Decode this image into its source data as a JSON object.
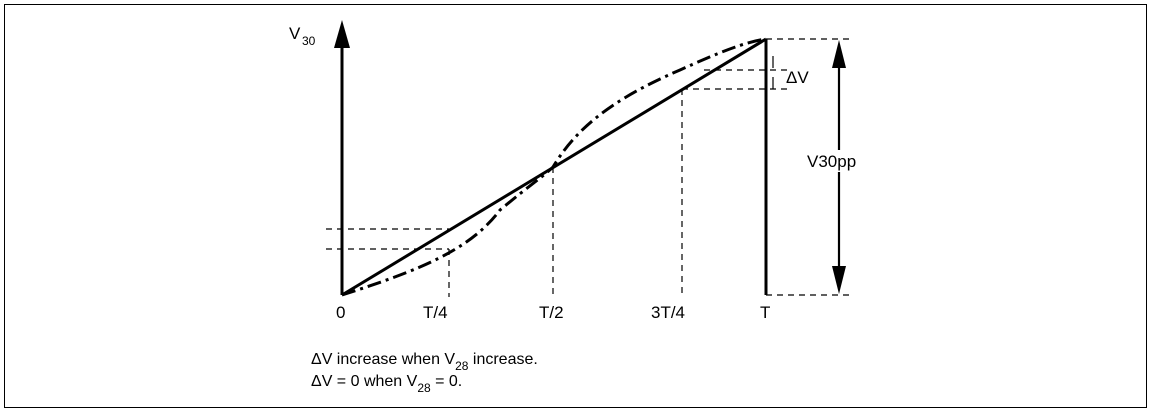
{
  "axis": {
    "y_label": "V",
    "y_label_sub": "30",
    "x_ticks": [
      "0",
      "T/4",
      "T/2",
      "3T/4",
      "T"
    ]
  },
  "labels": {
    "delta_v": "ΔV",
    "v30pp": "V30pp"
  },
  "notes": {
    "line1_a": "ΔV increase when V",
    "line1_sub": "28",
    "line1_b": " increase.",
    "line2_a": "ΔV = 0 when V",
    "line2_sub": "28",
    "line2_b": " = 0."
  }
}
